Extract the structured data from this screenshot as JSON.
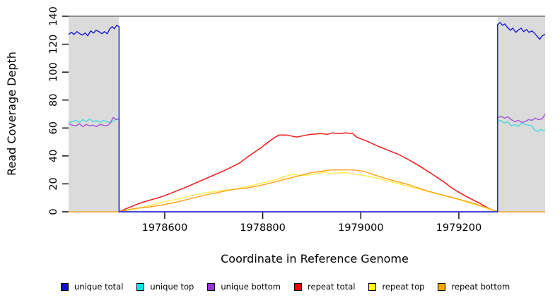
{
  "chart_data": {
    "type": "line",
    "title": "",
    "xlabel": "Coordinate in Reference Genome",
    "ylabel": "Read Coverage Depth",
    "x_domain": [
      1978404,
      1979376
    ],
    "y_domain": [
      0,
      140
    ],
    "x_ticks": [
      {
        "label": "1978600",
        "value": 1978600
      },
      {
        "label": "1978800",
        "value": 1978800
      },
      {
        "label": "1979000",
        "value": 1979000
      },
      {
        "label": "1979200",
        "value": 1979200
      }
    ],
    "y_ticks": [
      {
        "label": "0",
        "value": 0
      },
      {
        "label": "20",
        "value": 20
      },
      {
        "label": "40",
        "value": 40
      },
      {
        "label": "60",
        "value": 60
      },
      {
        "label": "80",
        "value": 80
      },
      {
        "label": "100",
        "value": 100
      },
      {
        "label": "120",
        "value": 120
      },
      {
        "label": "140",
        "value": 140
      }
    ],
    "grid": false,
    "legend_position": "bottom",
    "shade_color": "#dbdbdb",
    "top_line_color": "#8f8f8f",
    "shaded_regions": [
      [
        1978404,
        1978507
      ],
      [
        1979279,
        1979376
      ]
    ],
    "repeat_region": [
      1978507,
      1979279
    ],
    "series": [
      {
        "name": "repeat total",
        "color": "#ef1b1b",
        "legend_color": "#f00000",
        "points": [
          [
            1978507,
            0
          ],
          [
            1978520,
            2
          ],
          [
            1978552,
            6.5
          ],
          [
            1978596,
            11
          ],
          [
            1978639,
            17
          ],
          [
            1978682,
            23.5
          ],
          [
            1978725,
            30
          ],
          [
            1978753,
            35
          ],
          [
            1978768,
            39
          ],
          [
            1978797,
            46
          ],
          [
            1978819,
            52
          ],
          [
            1978833,
            55
          ],
          [
            1978848,
            55
          ],
          [
            1978862,
            54
          ],
          [
            1978869,
            53.5
          ],
          [
            1978883,
            54.5
          ],
          [
            1978898,
            55.5
          ],
          [
            1978919,
            56
          ],
          [
            1978933,
            55.5
          ],
          [
            1978941,
            56.5
          ],
          [
            1978955,
            56
          ],
          [
            1978970,
            56.5
          ],
          [
            1978984,
            56
          ],
          [
            1978991,
            53.5
          ],
          [
            1979013,
            50.5
          ],
          [
            1979035,
            47
          ],
          [
            1979056,
            44
          ],
          [
            1979078,
            41
          ],
          [
            1979099,
            37
          ],
          [
            1979114,
            34
          ],
          [
            1979128,
            31
          ],
          [
            1979150,
            26
          ],
          [
            1979171,
            21
          ],
          [
            1979186,
            17
          ],
          [
            1979200,
            14
          ],
          [
            1979215,
            11
          ],
          [
            1979229,
            8.5
          ],
          [
            1979243,
            6
          ],
          [
            1979258,
            3
          ],
          [
            1979270,
            1
          ],
          [
            1979279,
            0
          ]
        ]
      },
      {
        "name": "repeat top",
        "color": "#fdee55",
        "legend_color": "#ffff00",
        "points": [
          [
            1978507,
            0
          ],
          [
            1978540,
            2
          ],
          [
            1978570,
            4.5
          ],
          [
            1978596,
            7
          ],
          [
            1978625,
            9
          ],
          [
            1978654,
            11.5
          ],
          [
            1978682,
            13.5
          ],
          [
            1978711,
            15
          ],
          [
            1978740,
            16
          ],
          [
            1978768,
            18
          ],
          [
            1978797,
            20.5
          ],
          [
            1978826,
            23
          ],
          [
            1978848,
            25.5
          ],
          [
            1978862,
            27
          ],
          [
            1978876,
            26
          ],
          [
            1978898,
            26.5
          ],
          [
            1978912,
            27.5
          ],
          [
            1978926,
            28.5
          ],
          [
            1978941,
            27
          ],
          [
            1978955,
            28
          ],
          [
            1978970,
            28
          ],
          [
            1978984,
            27
          ],
          [
            1978998,
            26.5
          ],
          [
            1979013,
            25.5
          ],
          [
            1979035,
            24
          ],
          [
            1979056,
            22
          ],
          [
            1979078,
            20
          ],
          [
            1979099,
            18
          ],
          [
            1979121,
            16
          ],
          [
            1979142,
            14
          ],
          [
            1979164,
            12
          ],
          [
            1979186,
            10
          ],
          [
            1979207,
            8
          ],
          [
            1979229,
            5.5
          ],
          [
            1979250,
            3.5
          ],
          [
            1979265,
            1.5
          ],
          [
            1979279,
            0
          ]
        ]
      },
      {
        "name": "repeat bottom",
        "color": "#ffa41e",
        "legend_color": "#ffa500",
        "points": [
          [
            1978404,
            0
          ],
          [
            1978507,
            0
          ],
          [
            1978540,
            2.5
          ],
          [
            1978570,
            3.5
          ],
          [
            1978596,
            5
          ],
          [
            1978625,
            7
          ],
          [
            1978654,
            9.5
          ],
          [
            1978682,
            12
          ],
          [
            1978711,
            14
          ],
          [
            1978740,
            16
          ],
          [
            1978768,
            17
          ],
          [
            1978797,
            19
          ],
          [
            1978826,
            21.5
          ],
          [
            1978848,
            23.5
          ],
          [
            1978876,
            26
          ],
          [
            1978898,
            28
          ],
          [
            1978919,
            29
          ],
          [
            1978941,
            30
          ],
          [
            1978962,
            30
          ],
          [
            1978984,
            30
          ],
          [
            1979006,
            29
          ],
          [
            1979027,
            26.5
          ],
          [
            1979049,
            24
          ],
          [
            1979070,
            22
          ],
          [
            1979092,
            20
          ],
          [
            1979114,
            17.5
          ],
          [
            1979135,
            15
          ],
          [
            1979157,
            13
          ],
          [
            1979178,
            11
          ],
          [
            1979200,
            9
          ],
          [
            1979221,
            7
          ],
          [
            1979243,
            4.5
          ],
          [
            1979264,
            2
          ],
          [
            1979279,
            0
          ],
          [
            1979376,
            0
          ]
        ]
      },
      {
        "name": "unique top",
        "color": "#4ed9e2",
        "legend_color": "#00eaea",
        "points": [
          [
            1978404,
            64
          ],
          [
            1978412,
            64.5
          ],
          [
            1978419,
            65.5
          ],
          [
            1978426,
            64
          ],
          [
            1978433,
            66
          ],
          [
            1978440,
            64.5
          ],
          [
            1978447,
            66.5
          ],
          [
            1978454,
            64.5
          ],
          [
            1978461,
            65.5
          ],
          [
            1978468,
            64
          ],
          [
            1978475,
            65.5
          ],
          [
            1978482,
            64.5
          ],
          [
            1978489,
            64
          ],
          [
            1978496,
            65
          ],
          [
            1978502,
            66.5
          ],
          [
            1978507,
            66
          ],
          [
            1978507,
            0
          ],
          [
            1979279,
            0
          ],
          [
            1979279,
            64.5
          ],
          [
            1979286,
            65.5
          ],
          [
            1979293,
            63.5
          ],
          [
            1979300,
            64.5
          ],
          [
            1979307,
            61.5
          ],
          [
            1979314,
            62.5
          ],
          [
            1979321,
            61
          ],
          [
            1979328,
            63.5
          ],
          [
            1979335,
            62.5
          ],
          [
            1979342,
            62
          ],
          [
            1979349,
            61.5
          ],
          [
            1979355,
            58.5
          ],
          [
            1979361,
            57.5
          ],
          [
            1979367,
            59
          ],
          [
            1979371,
            58
          ],
          [
            1979376,
            58.5
          ]
        ]
      },
      {
        "name": "unique bottom",
        "color": "#a55ddd",
        "legend_color": "#9a30d8",
        "points": [
          [
            1978404,
            63
          ],
          [
            1978412,
            62
          ],
          [
            1978419,
            61.5
          ],
          [
            1978426,
            63
          ],
          [
            1978433,
            61
          ],
          [
            1978440,
            62.5
          ],
          [
            1978447,
            61.5
          ],
          [
            1978454,
            62
          ],
          [
            1978461,
            61
          ],
          [
            1978468,
            62.5
          ],
          [
            1978475,
            62
          ],
          [
            1978482,
            61.5
          ],
          [
            1978489,
            63.5
          ],
          [
            1978495,
            67.5
          ],
          [
            1978501,
            66
          ],
          [
            1978507,
            66.5
          ],
          [
            1978507,
            0
          ],
          [
            1979279,
            0
          ],
          [
            1979279,
            67
          ],
          [
            1979286,
            68.5
          ],
          [
            1979293,
            67
          ],
          [
            1979300,
            68
          ],
          [
            1979307,
            66
          ],
          [
            1979314,
            64.5
          ],
          [
            1979321,
            65.5
          ],
          [
            1979328,
            64
          ],
          [
            1979335,
            64.5
          ],
          [
            1979342,
            66
          ],
          [
            1979349,
            65.5
          ],
          [
            1979356,
            67
          ],
          [
            1979363,
            66
          ],
          [
            1979370,
            66.5
          ],
          [
            1979376,
            70
          ]
        ]
      },
      {
        "name": "unique total",
        "color": "#2424d2",
        "legend_color": "#0d0dcf",
        "points": [
          [
            1978404,
            127
          ],
          [
            1978410,
            128.5
          ],
          [
            1978415,
            127
          ],
          [
            1978421,
            129
          ],
          [
            1978427,
            127.5
          ],
          [
            1978432,
            126.5
          ],
          [
            1978438,
            128
          ],
          [
            1978443,
            126
          ],
          [
            1978449,
            129.5
          ],
          [
            1978455,
            128
          ],
          [
            1978460,
            130
          ],
          [
            1978466,
            129
          ],
          [
            1978472,
            127.5
          ],
          [
            1978477,
            129
          ],
          [
            1978483,
            127.5
          ],
          [
            1978488,
            131
          ],
          [
            1978493,
            132.5
          ],
          [
            1978497,
            131
          ],
          [
            1978502,
            133.5
          ],
          [
            1978507,
            132.5
          ],
          [
            1978507,
            0
          ],
          [
            1979279,
            0
          ],
          [
            1979279,
            134
          ],
          [
            1979284,
            135.5
          ],
          [
            1979289,
            133.5
          ],
          [
            1979294,
            134.5
          ],
          [
            1979299,
            132
          ],
          [
            1979305,
            130
          ],
          [
            1979310,
            131.5
          ],
          [
            1979316,
            128.5
          ],
          [
            1979321,
            130
          ],
          [
            1979327,
            131.5
          ],
          [
            1979332,
            129
          ],
          [
            1979338,
            130.5
          ],
          [
            1979343,
            128.5
          ],
          [
            1979349,
            129.5
          ],
          [
            1979354,
            128
          ],
          [
            1979360,
            125.5
          ],
          [
            1979365,
            123.5
          ],
          [
            1979370,
            126
          ],
          [
            1979376,
            127
          ]
        ]
      }
    ],
    "legend_order": [
      "unique total",
      "unique top",
      "unique bottom",
      "repeat total",
      "repeat top",
      "repeat bottom"
    ]
  }
}
